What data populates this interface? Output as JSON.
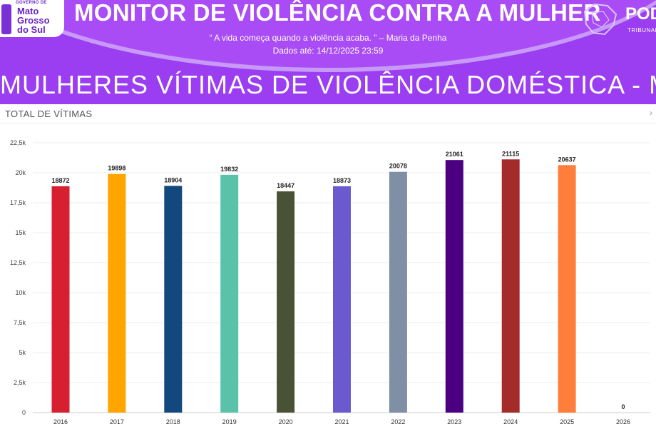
{
  "header": {
    "logo": {
      "line0": "GOVERNO DE",
      "line1": "Mato",
      "line2": "Grosso",
      "line3": "do Sul"
    },
    "title": "MONITOR DE VIOLÊNCIA CONTRA A MULHER",
    "quote": "“ A vida começa quando a violência acaba. ” – Maria da Penha",
    "date": "Dados até: 14/12/2025 23:59",
    "right_brand": "POD",
    "right_sub": "TRIBUNAL",
    "main_heading": "MULHERES VÍTIMAS DE VIOLÊNCIA DOMÉSTICA - MS",
    "bg_color": "#9b3df0"
  },
  "panel": {
    "label": "TOTAL DE VÍTIMAS",
    "chevron": "›"
  },
  "chart_data": {
    "type": "bar",
    "categories": [
      "2016",
      "2017",
      "2018",
      "2019",
      "2020",
      "2021",
      "2022",
      "2023",
      "2024",
      "2025",
      "2026"
    ],
    "values": [
      18872,
      19898,
      18904,
      19832,
      18447,
      18873,
      20078,
      21061,
      21115,
      20637,
      0
    ],
    "colors": [
      "#d7202f",
      "#ffa500",
      "#12487d",
      "#5bc2aa",
      "#4a5236",
      "#6a5acd",
      "#7f8fa6",
      "#4b0082",
      "#a52a2a",
      "#ff7f3a",
      "#999999"
    ],
    "ylim": [
      0,
      22500
    ],
    "yticks": [
      0,
      2500,
      5000,
      7500,
      10000,
      12500,
      15000,
      17500,
      20000,
      22500
    ],
    "ytick_labels": [
      "0",
      "2,5k",
      "5k",
      "7,5k",
      "10k",
      "12,5k",
      "15k",
      "17,5k",
      "20k",
      "22,5k"
    ],
    "grid": true,
    "title": "",
    "xlabel": "",
    "ylabel": ""
  }
}
